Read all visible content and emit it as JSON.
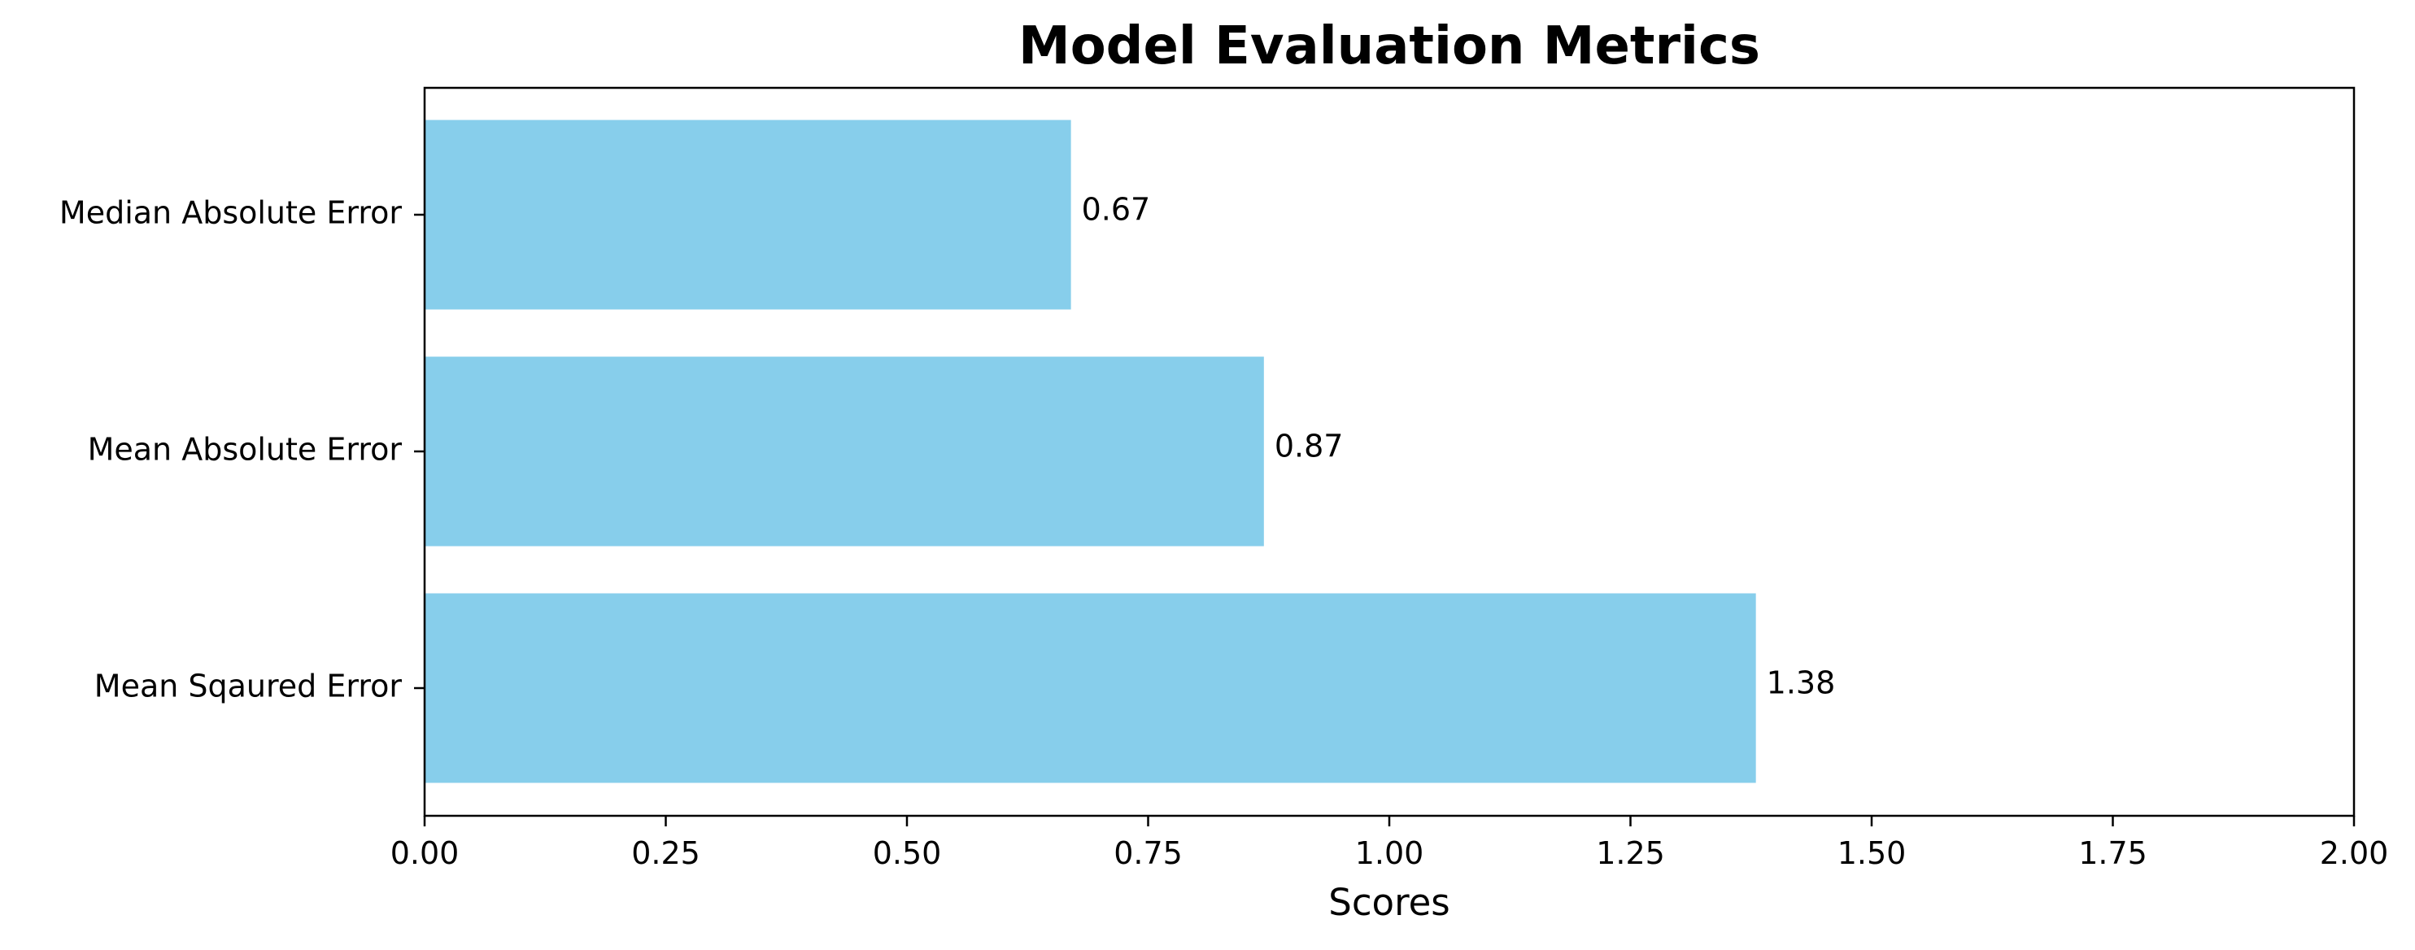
{
  "chart_data": {
    "type": "bar",
    "orientation": "horizontal",
    "title": "Model Evaluation Metrics",
    "xlabel": "Scores",
    "ylabel": "",
    "categories": [
      "Mean Sqaured Error",
      "Mean Absolute Error",
      "Median Absolute Error"
    ],
    "values": [
      1.38,
      0.87,
      0.67
    ],
    "value_labels": [
      "1.38",
      "0.87",
      "0.67"
    ],
    "xlim": [
      0,
      2.0
    ],
    "x_ticks": [
      0,
      0.25,
      0.5,
      0.75,
      1.0,
      1.25,
      1.5,
      1.75,
      2.0
    ],
    "x_tick_labels": [
      "0.00",
      "0.25",
      "0.50",
      "0.75",
      "1.00",
      "1.25",
      "1.50",
      "1.75",
      "2.00"
    ],
    "bar_color": "#87CEEB",
    "grid": false,
    "legend": "none"
  }
}
